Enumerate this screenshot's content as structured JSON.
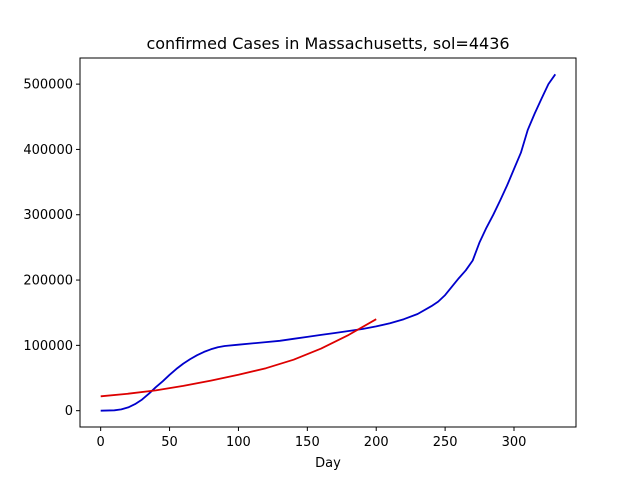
{
  "chart_data": {
    "type": "line",
    "title": "confirmed Cases in Massachusetts, sol=4436",
    "xlabel": "Day",
    "ylabel": "",
    "xlim": [
      -15,
      345
    ],
    "ylim": [
      -25000,
      540000
    ],
    "xticks": [
      0,
      50,
      100,
      150,
      200,
      250,
      300
    ],
    "yticks": [
      0,
      100000,
      200000,
      300000,
      400000,
      500000
    ],
    "grid": false,
    "series": [
      {
        "color": "#0000cc",
        "x": [
          0,
          10,
          15,
          20,
          25,
          30,
          35,
          40,
          45,
          50,
          55,
          60,
          65,
          70,
          75,
          80,
          85,
          90,
          100,
          110,
          120,
          130,
          140,
          150,
          160,
          170,
          180,
          190,
          200,
          210,
          220,
          230,
          240,
          245,
          250,
          255,
          260,
          265,
          270,
          275,
          280,
          285,
          290,
          295,
          300,
          305,
          310,
          315,
          320,
          325,
          330
        ],
        "y": [
          0,
          500,
          2000,
          5000,
          10000,
          17000,
          26000,
          36000,
          45000,
          55000,
          64000,
          72000,
          79000,
          85000,
          90000,
          94000,
          97000,
          99000,
          101000,
          103000,
          105000,
          107000,
          110000,
          113000,
          116000,
          119000,
          122000,
          125000,
          129000,
          134000,
          140000,
          148000,
          160000,
          167000,
          177000,
          190000,
          203000,
          215000,
          230000,
          258000,
          280000,
          300000,
          322000,
          345000,
          370000,
          395000,
          430000,
          455000,
          478000,
          500000,
          515000
        ]
      },
      {
        "color": "#dd0000",
        "x": [
          0,
          20,
          40,
          60,
          80,
          100,
          120,
          140,
          160,
          180,
          200
        ],
        "y": [
          22000,
          26000,
          31000,
          38000,
          46000,
          55000,
          65000,
          78000,
          95000,
          116000,
          140000
        ]
      }
    ]
  }
}
